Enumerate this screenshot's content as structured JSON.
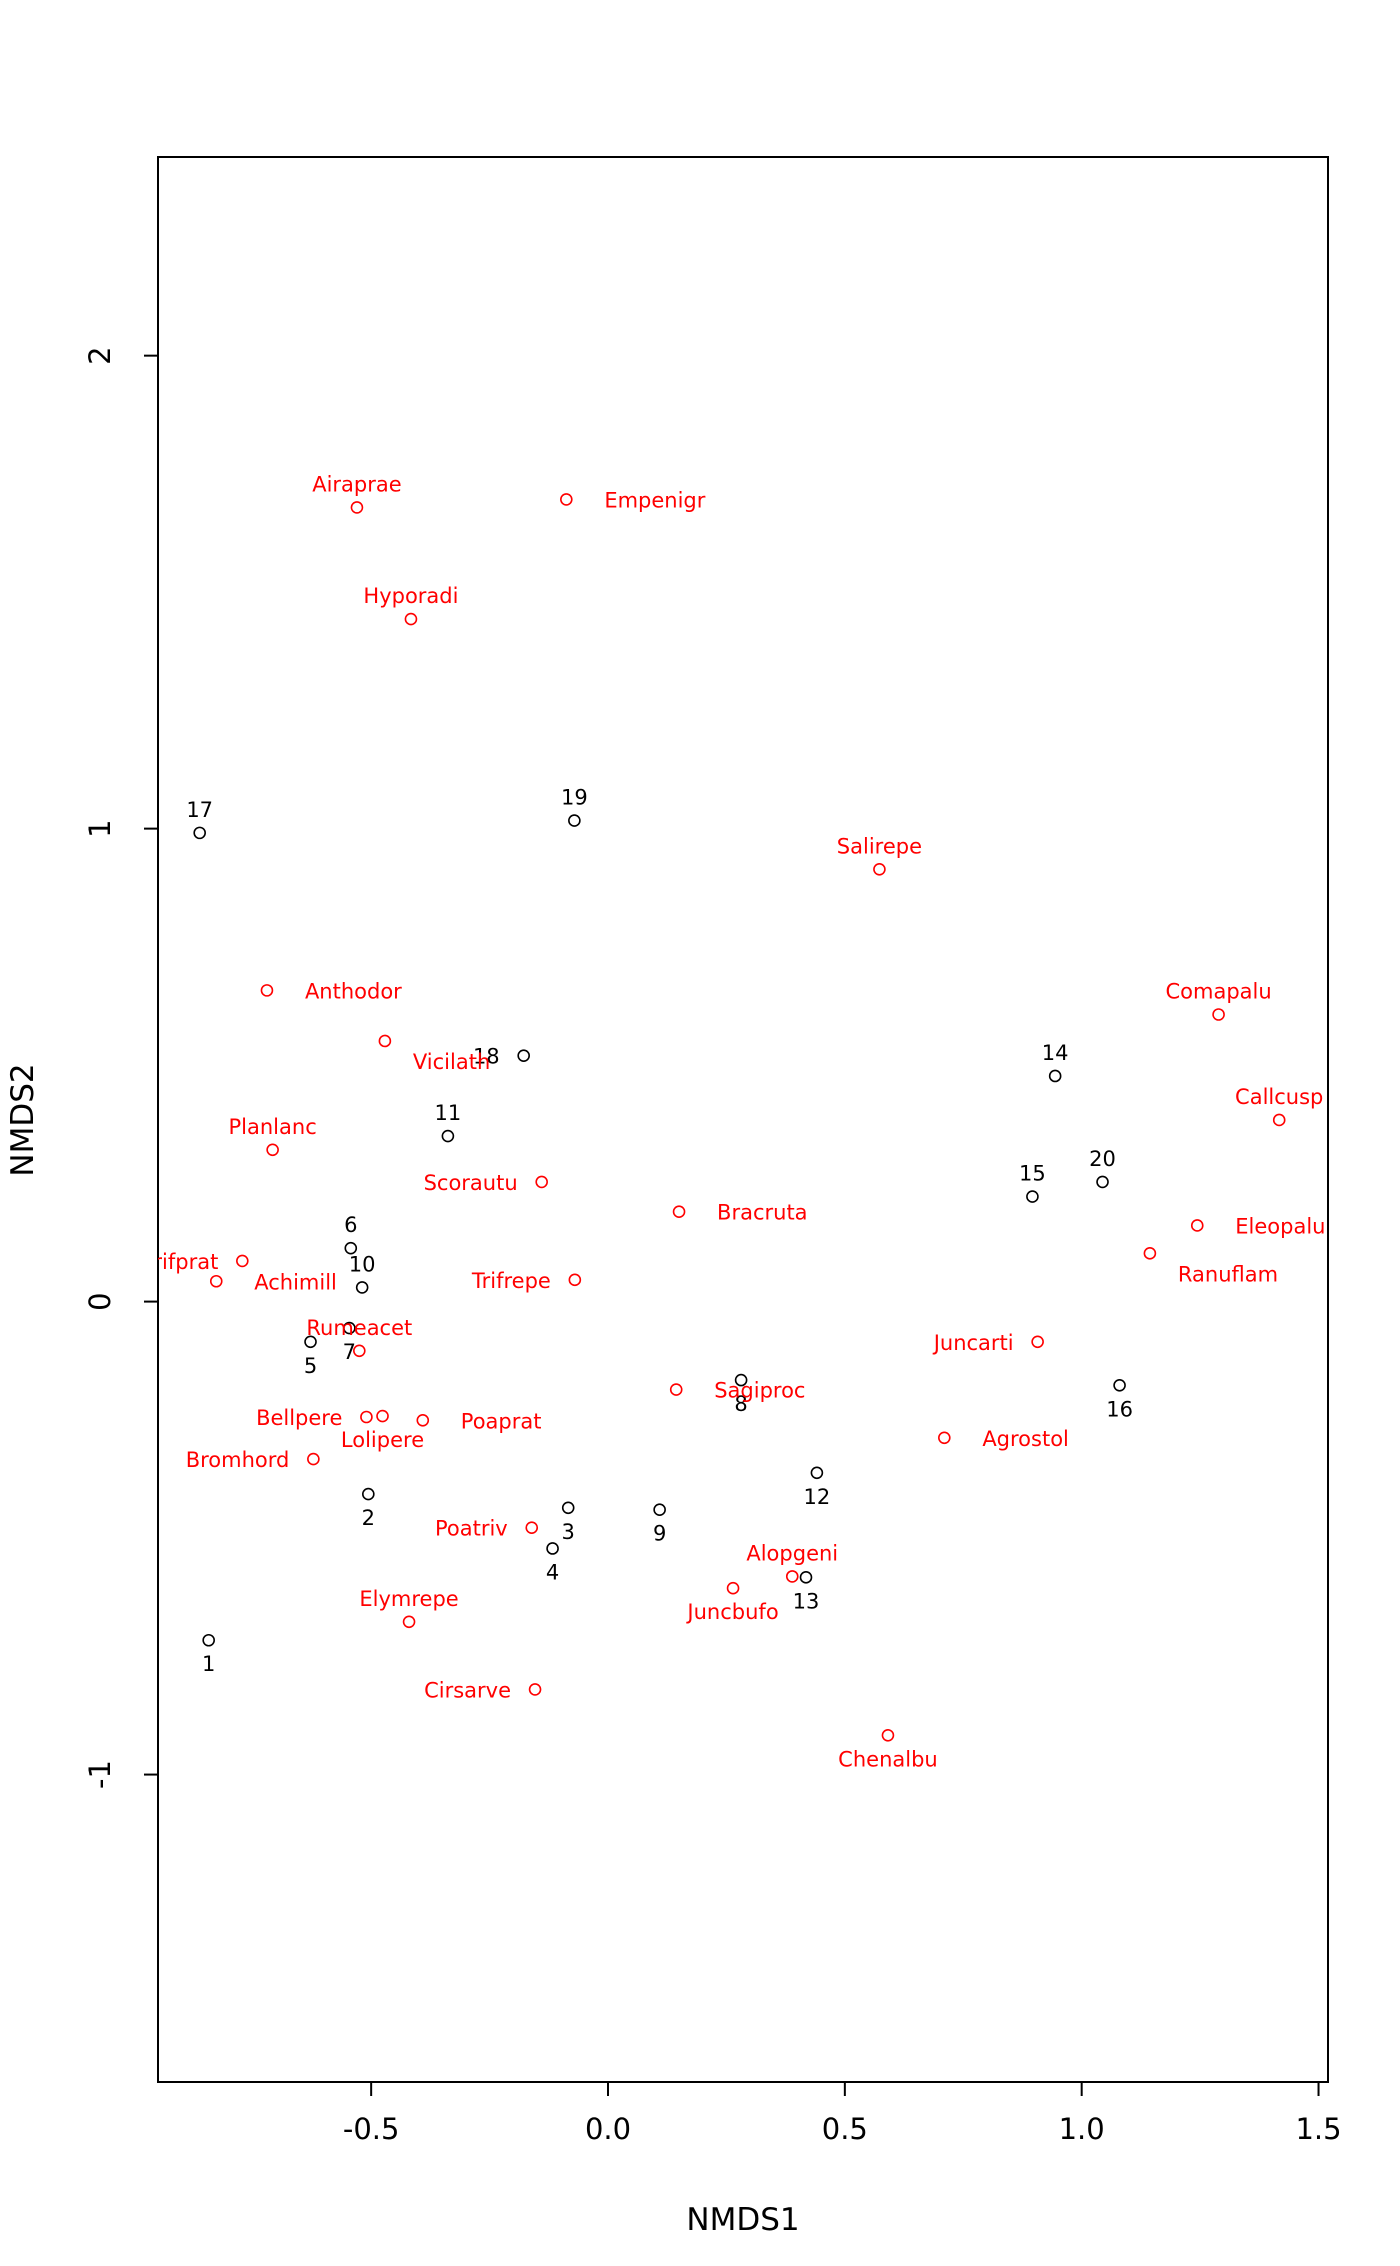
{
  "chart_data": {
    "type": "scatter",
    "title": "",
    "xlabel": "NMDS1",
    "ylabel": "NMDS2",
    "xlim": [
      -0.95,
      1.52
    ],
    "ylim": [
      -1.65,
      2.42
    ],
    "x_ticks": [
      -0.5,
      0.0,
      0.5,
      1.0,
      1.5
    ],
    "x_tick_labels": [
      "-0.5",
      "0.0",
      "0.5",
      "1.0",
      "1.5"
    ],
    "y_ticks": [
      -1,
      0,
      1,
      2
    ],
    "y_tick_labels": [
      "-1",
      "0",
      "1",
      "2"
    ],
    "grid": false,
    "legend": "none",
    "colors": {
      "sites": "#000000",
      "species": "#ff0000",
      "axes": "#000000"
    },
    "series": [
      {
        "kind": "sites",
        "points": [
          {
            "label": "1",
            "x": -0.843,
            "y": -0.716,
            "label_pos": "below"
          },
          {
            "label": "2",
            "x": -0.506,
            "y": -0.407,
            "label_pos": "below"
          },
          {
            "label": "3",
            "x": -0.084,
            "y": -0.436,
            "label_pos": "below"
          },
          {
            "label": "4",
            "x": -0.117,
            "y": -0.522,
            "label_pos": "below"
          },
          {
            "label": "5",
            "x": -0.628,
            "y": -0.085,
            "label_pos": "below"
          },
          {
            "label": "6",
            "x": -0.543,
            "y": 0.113,
            "label_pos": "above"
          },
          {
            "label": "7",
            "x": -0.546,
            "y": -0.056,
            "label_pos": "below"
          },
          {
            "label": "8",
            "x": 0.281,
            "y": -0.166,
            "label_pos": "below"
          },
          {
            "label": "9",
            "x": 0.109,
            "y": -0.44,
            "label_pos": "below"
          },
          {
            "label": "10",
            "x": -0.519,
            "y": 0.03,
            "label_pos": "above"
          },
          {
            "label": "11",
            "x": -0.338,
            "y": 0.35,
            "label_pos": "above"
          },
          {
            "label": "12",
            "x": 0.441,
            "y": -0.362,
            "label_pos": "below"
          },
          {
            "label": "13",
            "x": 0.418,
            "y": -0.583,
            "label_pos": "below"
          },
          {
            "label": "14",
            "x": 0.944,
            "y": 0.477,
            "label_pos": "above"
          },
          {
            "label": "15",
            "x": 0.896,
            "y": 0.222,
            "label_pos": "above"
          },
          {
            "label": "16",
            "x": 1.08,
            "y": -0.177,
            "label_pos": "below"
          },
          {
            "label": "17",
            "x": -0.862,
            "y": 0.991,
            "label_pos": "above"
          },
          {
            "label": "18",
            "x": -0.178,
            "y": 0.52,
            "label_pos": "left"
          },
          {
            "label": "19",
            "x": -0.071,
            "y": 1.017,
            "label_pos": "above"
          },
          {
            "label": "20",
            "x": 1.044,
            "y": 0.253,
            "label_pos": "above"
          }
        ]
      },
      {
        "kind": "species",
        "points": [
          {
            "label": "Achimill",
            "x": -0.827,
            "y": 0.043,
            "label_pos": "right"
          },
          {
            "label": "Agrostol",
            "x": 0.71,
            "y": -0.288,
            "label_pos": "right"
          },
          {
            "label": "Airaprae",
            "x": -0.53,
            "y": 1.679,
            "label_pos": "above"
          },
          {
            "label": "Alopgeni",
            "x": 0.389,
            "y": -0.581,
            "label_pos": "above"
          },
          {
            "label": "Anthodor",
            "x": -0.72,
            "y": 0.658,
            "label_pos": "right"
          },
          {
            "label": "Bellpere",
            "x": -0.51,
            "y": -0.244,
            "label_pos": "left"
          },
          {
            "label": "Bromhord",
            "x": -0.622,
            "y": -0.333,
            "label_pos": "left"
          },
          {
            "label": "Bracruta",
            "x": 0.15,
            "y": 0.19,
            "label_pos": "right"
          },
          {
            "label": "Callcusp",
            "x": 1.417,
            "y": 0.384,
            "label_pos": "above"
          },
          {
            "label": "Chenalbu",
            "x": 0.591,
            "y": -0.917,
            "label_pos": "below"
          },
          {
            "label": "Cirsarve",
            "x": -0.154,
            "y": -0.82,
            "label_pos": "left"
          },
          {
            "label": "Comapalu",
            "x": 1.289,
            "y": 0.607,
            "label_pos": "above"
          },
          {
            "label": "Eleopalu",
            "x": 1.244,
            "y": 0.161,
            "label_pos": "right"
          },
          {
            "label": "Elymrepe",
            "x": -0.42,
            "y": -0.677,
            "label_pos": "above"
          },
          {
            "label": "Empenigr",
            "x": -0.088,
            "y": 1.696,
            "label_pos": "right"
          },
          {
            "label": "Hyporadi",
            "x": -0.416,
            "y": 1.443,
            "label_pos": "above"
          },
          {
            "label": "Juncarti",
            "x": 0.907,
            "y": -0.085,
            "label_pos": "left"
          },
          {
            "label": "Juncbufo",
            "x": 0.264,
            "y": -0.606,
            "label_pos": "below"
          },
          {
            "label": "Lolipere",
            "x": -0.476,
            "y": -0.242,
            "label_pos": "below"
          },
          {
            "label": "Planlanc",
            "x": -0.708,
            "y": 0.321,
            "label_pos": "above"
          },
          {
            "label": "Poaprat",
            "x": -0.391,
            "y": -0.251,
            "label_pos": "right"
          },
          {
            "label": "Poatriv",
            "x": -0.161,
            "y": -0.478,
            "label_pos": "left"
          },
          {
            "label": "Ranuflam",
            "x": 1.144,
            "y": 0.102,
            "label_pos": "below-right"
          },
          {
            "label": "Rumeacet",
            "x": -0.525,
            "y": -0.104,
            "label_pos": "above"
          },
          {
            "label": "Sagiproc",
            "x": 0.144,
            "y": -0.186,
            "label_pos": "right"
          },
          {
            "label": "Salirepe",
            "x": 0.573,
            "y": 0.914,
            "label_pos": "above"
          },
          {
            "label": "Scorautu",
            "x": -0.14,
            "y": 0.253,
            "label_pos": "left"
          },
          {
            "label": "Trifprat",
            "x": -0.772,
            "y": 0.086,
            "label_pos": "left"
          },
          {
            "label": "Trifrepe",
            "x": -0.07,
            "y": 0.046,
            "label_pos": "left"
          },
          {
            "label": "Vicilath",
            "x": -0.471,
            "y": 0.551,
            "label_pos": "below-right"
          }
        ]
      }
    ]
  }
}
